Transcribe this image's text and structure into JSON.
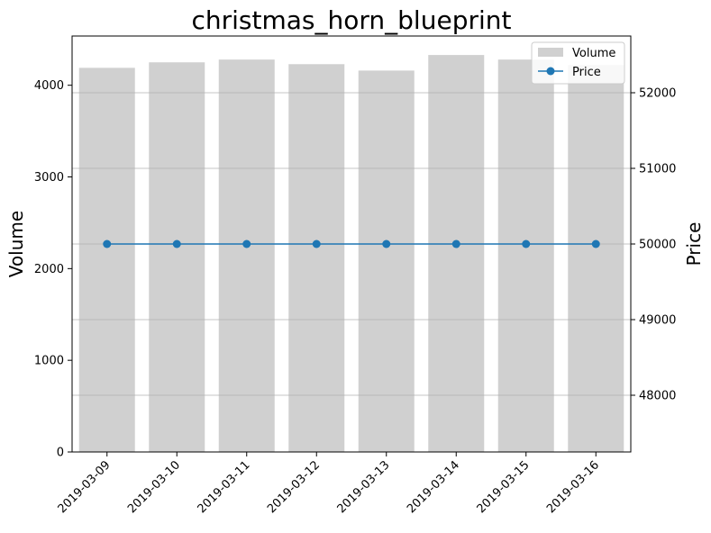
{
  "chart_data": {
    "type": "bar+line",
    "title": "christmas_horn_blueprint",
    "categories": [
      "2019-03-09",
      "2019-03-10",
      "2019-03-11",
      "2019-03-12",
      "2019-03-13",
      "2019-03-14",
      "2019-03-15",
      "2019-03-16"
    ],
    "series": [
      {
        "name": "Volume",
        "type": "bar",
        "axis": "left",
        "color": "#d0d0d0",
        "values": [
          4190,
          4250,
          4280,
          4230,
          4160,
          4330,
          4280,
          4220
        ]
      },
      {
        "name": "Price",
        "type": "line",
        "axis": "right",
        "color": "#1f77b4",
        "marker": "circle",
        "values": [
          50000,
          50000,
          50000,
          50000,
          50000,
          50000,
          50000,
          50000
        ]
      }
    ],
    "y_left": {
      "label": "Volume",
      "ticks": [
        0,
        1000,
        2000,
        3000,
        4000
      ],
      "tick_labels": [
        "0",
        "1000",
        "2000",
        "3000",
        "4000"
      ],
      "range": [
        0,
        4537
      ]
    },
    "y_right": {
      "label": "Price",
      "ticks": [
        48000,
        49000,
        50000,
        51000,
        52000
      ],
      "tick_labels": [
        "48000",
        "49000",
        "50000",
        "51000",
        "52000"
      ],
      "range": [
        47250,
        52750
      ]
    },
    "grid": "horizontal, right axis",
    "legend": {
      "placement": "top-right",
      "entries": [
        "Volume",
        "Price"
      ]
    }
  }
}
